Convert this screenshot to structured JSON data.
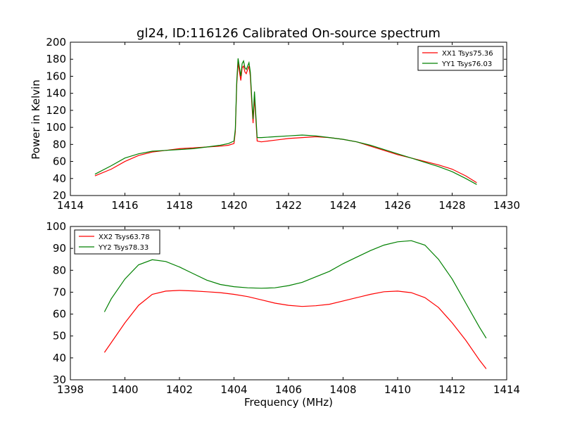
{
  "title": "gl24, ID:116126 Calibrated On-source spectrum",
  "xlabel": "Frequency (MHz)",
  "chart_data": [
    {
      "type": "line",
      "title": "gl24, ID:116126 Calibrated On-source spectrum",
      "ylabel": "Power in Kelvin",
      "xlabel": "",
      "xlim": [
        1414,
        1430
      ],
      "ylim": [
        20,
        200
      ],
      "xticks": [
        1414,
        1416,
        1418,
        1420,
        1422,
        1424,
        1426,
        1428,
        1430
      ],
      "yticks": [
        20,
        40,
        60,
        80,
        100,
        120,
        140,
        160,
        180,
        200
      ],
      "legend_position": "top-right",
      "grid": false,
      "series": [
        {
          "name": "XX1 Tsys75.36",
          "color": "#ff0000",
          "x": [
            1414.9,
            1415.5,
            1416.0,
            1416.5,
            1417.0,
            1417.5,
            1418.0,
            1418.5,
            1419.0,
            1419.5,
            1419.8,
            1420.0,
            1420.05,
            1420.1,
            1420.15,
            1420.2,
            1420.25,
            1420.3,
            1420.35,
            1420.4,
            1420.45,
            1420.5,
            1420.55,
            1420.6,
            1420.65,
            1420.7,
            1420.75,
            1420.8,
            1420.85,
            1421.0,
            1421.5,
            1422.0,
            1422.5,
            1423.0,
            1423.5,
            1424.0,
            1424.5,
            1425.0,
            1425.5,
            1426.0,
            1426.5,
            1427.0,
            1427.5,
            1428.0,
            1428.5,
            1428.9
          ],
          "values": [
            43,
            51,
            60,
            67,
            71,
            73,
            75,
            76,
            77,
            78,
            79,
            81,
            95,
            150,
            176,
            165,
            155,
            170,
            172,
            165,
            163,
            168,
            172,
            160,
            130,
            105,
            135,
            110,
            84,
            83,
            85,
            87,
            88,
            89,
            88,
            86,
            83,
            78,
            73,
            68,
            64,
            60,
            56,
            51,
            43,
            35
          ]
        },
        {
          "name": "YY1 Tsys76.03",
          "color": "#008000",
          "x": [
            1414.9,
            1415.5,
            1416.0,
            1416.5,
            1417.0,
            1417.5,
            1418.0,
            1418.5,
            1419.0,
            1419.5,
            1419.8,
            1420.0,
            1420.05,
            1420.1,
            1420.15,
            1420.2,
            1420.25,
            1420.3,
            1420.35,
            1420.4,
            1420.45,
            1420.5,
            1420.55,
            1420.6,
            1420.65,
            1420.7,
            1420.75,
            1420.8,
            1420.85,
            1421.0,
            1421.5,
            1422.0,
            1422.5,
            1423.0,
            1423.5,
            1424.0,
            1424.5,
            1425.0,
            1425.5,
            1426.0,
            1426.5,
            1427.0,
            1427.5,
            1428.0,
            1428.5,
            1428.9
          ],
          "values": [
            45,
            55,
            64,
            69,
            72,
            73,
            74,
            75,
            77,
            79,
            81,
            84,
            98,
            154,
            181,
            170,
            160,
            175,
            178,
            170,
            168,
            172,
            176,
            165,
            135,
            110,
            142,
            115,
            88,
            88,
            89,
            90,
            91,
            90,
            88,
            86,
            83,
            79,
            74,
            69,
            64,
            59,
            54,
            48,
            40,
            33
          ]
        }
      ]
    },
    {
      "type": "line",
      "title": "",
      "ylabel": "",
      "xlabel": "Frequency (MHz)",
      "xlim": [
        1398,
        1414
      ],
      "ylim": [
        30,
        100
      ],
      "xticks": [
        1398,
        1400,
        1402,
        1404,
        1406,
        1408,
        1410,
        1412,
        1414
      ],
      "yticks": [
        30,
        40,
        50,
        60,
        70,
        80,
        90,
        100
      ],
      "legend_position": "top-left",
      "grid": false,
      "series": [
        {
          "name": "XX2 Tsys63.78",
          "color": "#ff0000",
          "x": [
            1399.25,
            1399.5,
            1400.0,
            1400.5,
            1401.0,
            1401.5,
            1402.0,
            1402.5,
            1403.0,
            1403.5,
            1404.0,
            1404.5,
            1405.0,
            1405.5,
            1406.0,
            1406.5,
            1407.0,
            1407.5,
            1408.0,
            1408.5,
            1409.0,
            1409.5,
            1410.0,
            1410.5,
            1411.0,
            1411.5,
            1412.0,
            1412.5,
            1413.0,
            1413.25
          ],
          "values": [
            42.5,
            47,
            56,
            64,
            69,
            70.5,
            70.8,
            70.6,
            70.2,
            69.8,
            69,
            68,
            66.5,
            65,
            64,
            63.5,
            63.8,
            64.5,
            66,
            67.5,
            69,
            70.2,
            70.5,
            69.8,
            67.5,
            63,
            56,
            48,
            39,
            35
          ]
        },
        {
          "name": "YY2 Tsys78.33",
          "color": "#008000",
          "x": [
            1399.25,
            1399.5,
            1400.0,
            1400.5,
            1401.0,
            1401.5,
            1402.0,
            1402.5,
            1403.0,
            1403.5,
            1404.0,
            1404.5,
            1405.0,
            1405.5,
            1406.0,
            1406.5,
            1407.0,
            1407.5,
            1408.0,
            1408.5,
            1409.0,
            1409.5,
            1410.0,
            1410.5,
            1411.0,
            1411.5,
            1412.0,
            1412.5,
            1413.0,
            1413.25
          ],
          "values": [
            61,
            67,
            76,
            82.5,
            84.8,
            84,
            81.5,
            78.5,
            75.5,
            73.5,
            72.5,
            72,
            71.8,
            72,
            73,
            74.5,
            77,
            79.5,
            83,
            86,
            89,
            91.5,
            93,
            93.5,
            91.5,
            85,
            76,
            65,
            54,
            49
          ]
        }
      ]
    }
  ]
}
